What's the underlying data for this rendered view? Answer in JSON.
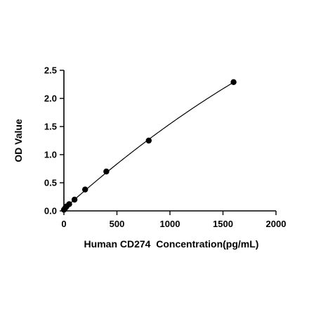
{
  "chart_data": {
    "type": "scatter",
    "title": "",
    "xlabel": "Human CD274  Concentration(pg/mL)",
    "ylabel": "OD Value",
    "xlim": [
      0,
      2000
    ],
    "ylim": [
      0,
      2.5
    ],
    "x_ticks": [
      "0",
      "500",
      "1000",
      "1500",
      "2000"
    ],
    "y_ticks": [
      "0.0",
      "0.5",
      "1.0",
      "1.5",
      "2.0",
      "2.5"
    ],
    "grid": false,
    "legend": "none",
    "fit_line": true,
    "point_color": "#000000",
    "series": [
      {
        "x": [
          0,
          12.5,
          25,
          50,
          100,
          200,
          400,
          800,
          1600
        ],
        "y": [
          0.02,
          0.05,
          0.08,
          0.12,
          0.2,
          0.38,
          0.7,
          1.25,
          2.29
        ]
      }
    ]
  }
}
